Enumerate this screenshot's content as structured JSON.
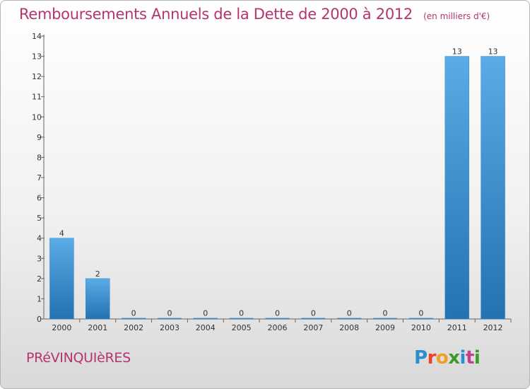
{
  "header": {
    "title": "Remboursements Annuels de la Dette de 2000 à 2012",
    "unit": "(en milliers d'€)"
  },
  "footer": {
    "commune": "PRéVINQUIèRES",
    "logo": {
      "letters": [
        "P",
        "r",
        "o",
        "x",
        "i",
        "t",
        "i"
      ],
      "colors": [
        "#2a8fd0",
        "#e8442c",
        "#f0a020",
        "#3a9a2c",
        "#2a8fd0",
        "#c04090",
        "#3a9a2c"
      ]
    }
  },
  "colors": {
    "accent": "#b5346f",
    "bar_light": "#5aabe6",
    "bar_dark": "#2472b0",
    "text": "#333333"
  },
  "chart_data": {
    "type": "bar",
    "categories": [
      "2000",
      "2001",
      "2002",
      "2003",
      "2004",
      "2005",
      "2006",
      "2007",
      "2008",
      "2009",
      "2010",
      "2011",
      "2012"
    ],
    "values": [
      4,
      2,
      0,
      0,
      0,
      0,
      0,
      0,
      0,
      0,
      0,
      13,
      13
    ],
    "data_labels": [
      "4",
      "2",
      "0",
      "0",
      "0",
      "0",
      "0",
      "0",
      "0",
      "0",
      "0",
      "13",
      "13"
    ],
    "y_ticks": [
      "0",
      "1",
      "2",
      "3",
      "4",
      "5",
      "6",
      "7",
      "8",
      "9",
      "10",
      "11",
      "12",
      "13",
      "14"
    ],
    "ylim": [
      0,
      14
    ],
    "title": "Remboursements Annuels de la Dette de 2000 à 2012",
    "xlabel": "",
    "ylabel": "",
    "grid": false,
    "legend": "none"
  }
}
